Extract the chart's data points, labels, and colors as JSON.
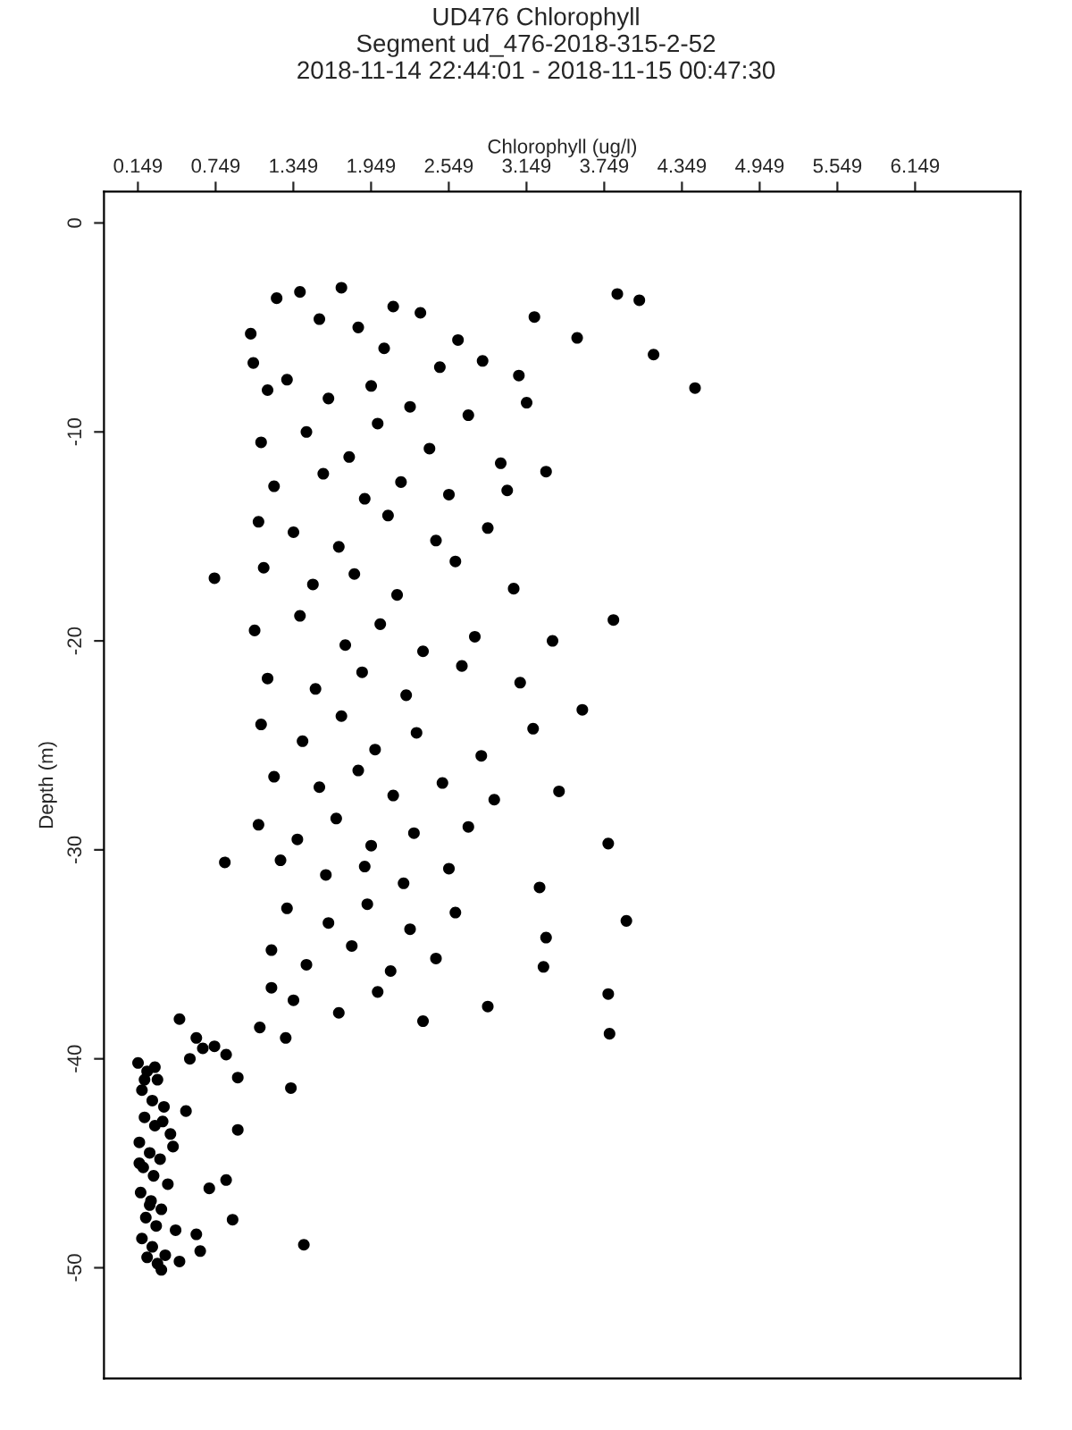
{
  "chart_data": {
    "type": "scatter",
    "title": "UD476 Chlorophyll\nSegment ud_476-2018-315-2-52\n2018-11-14 22:44:01 - 2018-11-15 00:47:30",
    "xlabel": "Chlorophyll (ug/l)",
    "ylabel": "Depth (m)",
    "xlim": [
      -0.113,
      6.963
    ],
    "ylim": [
      -55.3,
      1.5
    ],
    "xticks": [
      0.149,
      0.749,
      1.349,
      1.949,
      2.549,
      3.149,
      3.749,
      4.349,
      4.949,
      5.549,
      6.149
    ],
    "yticks": [
      0,
      -10,
      -20,
      -30,
      -40,
      -50
    ],
    "grid": false,
    "marker": "circle",
    "legend": false,
    "series": [
      {
        "color": "#000000",
        "x": [
          3.85,
          4.02,
          4.13,
          4.45,
          1.72,
          1.4,
          1.22,
          1.04,
          1.02,
          3.21,
          3.54,
          3.09,
          2.62,
          2.81,
          2.12,
          2.33,
          1.55,
          1.85,
          2.05,
          2.48,
          1.15,
          1.3,
          1.62,
          1.95,
          2.25,
          2.7,
          3.15,
          1.1,
          1.45,
          1.78,
          2.0,
          2.4,
          2.95,
          1.2,
          1.58,
          1.9,
          2.18,
          2.55,
          3.0,
          3.3,
          1.08,
          1.35,
          1.7,
          2.08,
          2.45,
          2.85,
          0.74,
          1.12,
          1.5,
          1.82,
          2.15,
          2.6,
          3.05,
          3.82,
          1.05,
          1.4,
          1.75,
          2.02,
          2.35,
          2.75,
          3.35,
          1.15,
          1.52,
          1.88,
          2.22,
          2.65,
          3.1,
          3.58,
          1.1,
          1.42,
          1.72,
          1.98,
          2.3,
          2.8,
          3.2,
          1.2,
          1.55,
          1.85,
          2.12,
          2.5,
          2.9,
          3.4,
          1.08,
          1.38,
          1.68,
          1.95,
          2.28,
          2.7,
          3.78,
          0.82,
          1.25,
          1.6,
          1.9,
          2.2,
          2.55,
          3.25,
          1.3,
          1.62,
          1.92,
          2.25,
          2.6,
          3.3,
          3.92,
          1.18,
          1.45,
          1.8,
          2.1,
          2.45,
          3.28,
          3.78,
          1.35,
          1.7,
          2.0,
          2.35,
          2.85,
          3.79,
          0.47,
          0.6,
          0.74,
          0.83,
          0.92,
          1.09,
          1.18,
          1.29,
          1.33,
          0.92,
          0.83,
          0.88,
          0.6,
          0.63,
          0.47,
          0.33,
          1.43,
          0.15,
          0.22,
          0.3,
          0.18,
          0.26,
          0.35,
          0.2,
          0.28,
          0.4,
          0.16,
          0.24,
          0.32,
          0.19,
          0.27,
          0.38,
          0.17,
          0.25,
          0.33,
          0.21,
          0.29,
          0.44,
          0.18,
          0.26,
          0.36,
          0.22,
          0.3,
          0.16,
          0.24,
          0.34,
          0.2,
          0.28,
          0.52,
          0.65,
          0.55,
          0.42,
          0.7
        ],
        "values": [
          -3.4,
          -3.7,
          -6.3,
          -7.9,
          -3.1,
          -3.3,
          -3.6,
          -6.7,
          -5.3,
          -4.5,
          -5.5,
          -7.3,
          -5.6,
          -6.6,
          -4.0,
          -4.3,
          -4.6,
          -5.0,
          -6.0,
          -6.9,
          -8.0,
          -7.5,
          -8.4,
          -7.8,
          -8.8,
          -9.2,
          -8.6,
          -10.5,
          -10.0,
          -11.2,
          -9.6,
          -10.8,
          -11.5,
          -12.6,
          -12.0,
          -13.2,
          -12.4,
          -13.0,
          -12.8,
          -11.9,
          -14.3,
          -14.8,
          -15.5,
          -14.0,
          -15.2,
          -14.6,
          -17.0,
          -16.5,
          -17.3,
          -16.8,
          -17.8,
          -16.2,
          -17.5,
          -19.0,
          -19.5,
          -18.8,
          -20.2,
          -19.2,
          -20.5,
          -19.8,
          -20.0,
          -21.8,
          -22.3,
          -21.5,
          -22.6,
          -21.2,
          -22.0,
          -23.3,
          -24.0,
          -24.8,
          -23.6,
          -25.2,
          -24.4,
          -25.5,
          -24.2,
          -26.5,
          -27.0,
          -26.2,
          -27.4,
          -26.8,
          -27.6,
          -27.2,
          -28.8,
          -29.5,
          -28.5,
          -29.8,
          -29.2,
          -28.9,
          -29.7,
          -30.6,
          -30.5,
          -31.2,
          -30.8,
          -31.6,
          -30.9,
          -31.8,
          -32.8,
          -33.5,
          -32.6,
          -33.8,
          -33.0,
          -34.2,
          -33.4,
          -34.8,
          -35.5,
          -34.6,
          -35.8,
          -35.2,
          -35.6,
          -36.9,
          -37.2,
          -37.8,
          -36.8,
          -38.2,
          -37.5,
          -38.8,
          -38.1,
          -39.0,
          -39.4,
          -39.8,
          -40.9,
          -38.5,
          -36.6,
          -39.0,
          -41.4,
          -43.4,
          -45.8,
          -47.7,
          -48.4,
          -49.2,
          -49.7,
          -50.1,
          -48.9,
          -40.2,
          -40.6,
          -41.0,
          -41.5,
          -42.0,
          -42.3,
          -42.8,
          -43.2,
          -43.6,
          -44.0,
          -44.5,
          -44.8,
          -45.2,
          -45.6,
          -46.0,
          -46.4,
          -46.8,
          -47.2,
          -47.6,
          -48.0,
          -48.2,
          -48.6,
          -49.0,
          -49.4,
          -49.5,
          -49.8,
          -45.0,
          -47.0,
          -43.0,
          -41.0,
          -40.4,
          -42.5,
          -39.5,
          -40.0,
          -44.2,
          -46.2
        ]
      }
    ]
  }
}
